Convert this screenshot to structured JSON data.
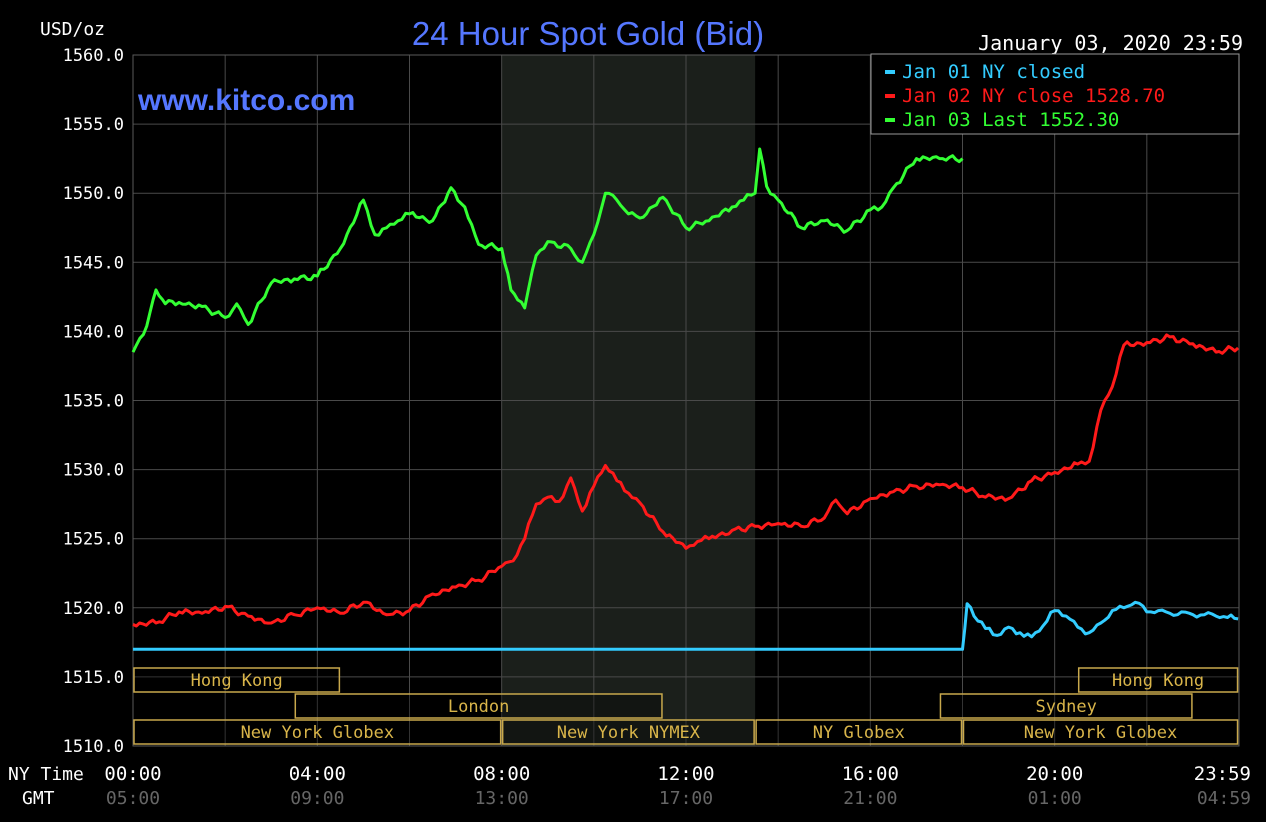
{
  "header": {
    "title": "24 Hour Spot Gold (Bid)",
    "units": "USD/oz",
    "date": "January 03, 2020 23:59",
    "watermark": "www.kitco.com"
  },
  "legend": [
    {
      "label": "Jan 01 NY closed",
      "color": "#33ccff"
    },
    {
      "label": "Jan 02 NY close 1528.70",
      "color": "#ff1a1a"
    },
    {
      "label": "Jan 03 Last 1552.30",
      "color": "#33ff33"
    }
  ],
  "x_axis": {
    "row_labels": [
      "NY Time",
      "GMT"
    ],
    "ny_ticks": [
      "00:00",
      "04:00",
      "08:00",
      "12:00",
      "16:00",
      "20:00",
      "23:59"
    ],
    "gmt_ticks": [
      "05:00",
      "09:00",
      "13:00",
      "17:00",
      "21:00",
      "01:00",
      "04:59"
    ]
  },
  "markets": [
    {
      "name": "Hong Kong",
      "start": 0.0,
      "end": 4.5,
      "row": 0
    },
    {
      "name": "London",
      "start": 3.5,
      "end": 11.5,
      "row": 1
    },
    {
      "name": "New York Globex",
      "start": 0.0,
      "end": 8.0,
      "row": 2
    },
    {
      "name": "New York NYMEX",
      "start": 8.0,
      "end": 13.5,
      "row": 2
    },
    {
      "name": "NY Globex",
      "start": 13.5,
      "end": 18.0,
      "row": 2
    },
    {
      "name": "Hong Kong",
      "start": 20.5,
      "end": 23.99,
      "row": 0
    },
    {
      "name": "Sydney",
      "start": 17.5,
      "end": 23.0,
      "row": 1
    },
    {
      "name": "New York Globex",
      "start": 18.0,
      "end": 23.99,
      "row": 2
    }
  ],
  "chart_data": {
    "type": "line",
    "title": "24 Hour Spot Gold (Bid)",
    "ylabel": "USD/oz",
    "xlabel": "NY Time",
    "xlim": [
      0,
      24
    ],
    "ylim": [
      1510,
      1560
    ],
    "yticks": [
      "1510.0",
      "1515.0",
      "1520.0",
      "1525.0",
      "1530.0",
      "1535.0",
      "1540.0",
      "1545.0",
      "1550.0",
      "1555.0",
      "1560.0"
    ],
    "grid": true,
    "shaded_hours": [
      8.0,
      13.5
    ],
    "series": [
      {
        "name": "Jan 01 NY closed",
        "color": "#33ccff",
        "x": [
          0,
          18.0,
          18.05,
          18.1,
          18.25,
          18.5,
          18.75,
          19.0,
          19.25,
          19.5,
          19.75,
          20.0,
          20.25,
          20.5,
          20.75,
          21.0,
          21.25,
          21.5,
          21.75,
          22.0,
          22.25,
          22.5,
          22.75,
          23.0,
          23.25,
          23.5,
          23.75,
          23.98
        ],
        "values": [
          1517.0,
          1517.0,
          1518.5,
          1520.3,
          1519.4,
          1518.5,
          1518.0,
          1518.6,
          1518.2,
          1517.9,
          1518.7,
          1519.8,
          1519.4,
          1518.6,
          1518.2,
          1518.9,
          1519.8,
          1520.0,
          1520.4,
          1519.7,
          1519.8,
          1519.6,
          1519.7,
          1519.5,
          1519.5,
          1519.4,
          1519.3,
          1519.2
        ]
      },
      {
        "name": "Jan 02 NY close 1528.70",
        "color": "#ff1a1a",
        "x": [
          0,
          0.5,
          1.0,
          1.5,
          2.0,
          2.5,
          3.0,
          3.5,
          4.0,
          4.5,
          5.0,
          5.5,
          6.0,
          6.5,
          7.0,
          7.5,
          8.0,
          8.25,
          8.5,
          8.75,
          9.0,
          9.25,
          9.5,
          9.75,
          10.0,
          10.25,
          10.5,
          10.75,
          11.0,
          11.5,
          12.0,
          12.25,
          12.5,
          13.0,
          13.5,
          14.0,
          14.5,
          15.0,
          15.25,
          15.5,
          16.0,
          16.5,
          17.0,
          17.5,
          18.0,
          18.5,
          19.0,
          19.5,
          20.0,
          20.5,
          20.75,
          21.0,
          21.25,
          21.5,
          22.0,
          22.5,
          23.0,
          23.5,
          23.98
        ],
        "values": [
          1518.8,
          1518.9,
          1519.7,
          1519.6,
          1520.1,
          1519.4,
          1518.9,
          1519.5,
          1520.0,
          1519.6,
          1520.4,
          1519.5,
          1519.8,
          1521.0,
          1521.5,
          1522.0,
          1523.0,
          1523.4,
          1525.0,
          1527.5,
          1528.0,
          1527.7,
          1529.4,
          1527.0,
          1528.8,
          1530.3,
          1529.2,
          1528.3,
          1527.6,
          1525.5,
          1524.3,
          1524.8,
          1525.0,
          1525.6,
          1525.9,
          1526.1,
          1525.9,
          1526.5,
          1527.8,
          1526.8,
          1527.9,
          1528.4,
          1528.8,
          1528.9,
          1528.7,
          1528.0,
          1527.9,
          1529.2,
          1529.8,
          1530.4,
          1530.6,
          1534.3,
          1536.0,
          1539.0,
          1539.2,
          1539.6,
          1539.1,
          1538.5,
          1538.8
        ]
      },
      {
        "name": "Jan 03 Last 1552.30",
        "color": "#33ff33",
        "x": [
          0,
          0.15,
          0.3,
          0.5,
          0.7,
          1.0,
          1.5,
          2.0,
          2.25,
          2.5,
          3.0,
          3.5,
          4.0,
          4.5,
          5.0,
          5.25,
          5.5,
          5.75,
          6.0,
          6.5,
          6.9,
          7.2,
          7.5,
          8.0,
          8.2,
          8.5,
          8.75,
          9.0,
          9.5,
          9.75,
          10.0,
          10.25,
          10.5,
          10.75,
          11.0,
          11.5,
          12.0,
          12.5,
          13.0,
          13.25,
          13.5,
          13.6,
          13.75,
          14.0,
          14.5,
          15.0,
          15.5,
          16.0,
          16.25,
          16.5,
          17.0,
          17.5,
          18.0
        ],
        "values": [
          1538.5,
          1539.5,
          1540.4,
          1543.0,
          1542.0,
          1542.1,
          1541.8,
          1541.0,
          1542.0,
          1540.5,
          1543.5,
          1543.8,
          1544.0,
          1546.0,
          1549.5,
          1547.0,
          1547.5,
          1548.0,
          1548.5,
          1548.0,
          1550.4,
          1549.0,
          1546.3,
          1546.0,
          1543.0,
          1541.7,
          1545.5,
          1546.5,
          1546.0,
          1545.0,
          1547.0,
          1550.0,
          1549.5,
          1548.5,
          1548.2,
          1549.7,
          1547.5,
          1548.0,
          1549.0,
          1549.5,
          1550.0,
          1553.2,
          1550.5,
          1549.5,
          1547.5,
          1548.0,
          1547.3,
          1548.8,
          1549.0,
          1550.4,
          1552.5,
          1552.5,
          1552.5
        ]
      }
    ]
  }
}
